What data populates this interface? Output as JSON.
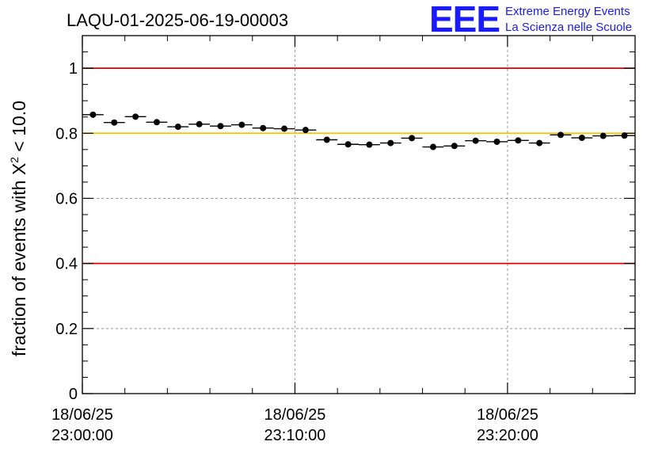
{
  "header": {
    "run_title": "LAQU-01-2025-06-19-00003",
    "logo": {
      "letters": "EEE",
      "line1": "Extreme Energy Events",
      "line2": "La Scienza nelle Scuole",
      "color": "#1a1aff"
    }
  },
  "chart_data": {
    "type": "scatter",
    "title": "LAQU-01-2025-06-19-00003",
    "xlabel": "",
    "ylabel_prefix": "fraction of events with ",
    "ylabel_symbol": "X",
    "ylabel_exponent": "2",
    "ylabel_suffix": " < 10.0",
    "x_unit": "minutes after 18/06/25 23:00:00",
    "xlim": [
      0,
      26
    ],
    "ylim": [
      0,
      1.1
    ],
    "yticks": [
      "0",
      "0.2",
      "0.4",
      "0.6",
      "0.8",
      "1"
    ],
    "xticks": [
      {
        "date": "18/06/25",
        "time": "23:00:00"
      },
      {
        "date": "18/06/25",
        "time": "23:10:00"
      },
      {
        "date": "18/06/25",
        "time": "23:20:00"
      }
    ],
    "grid": true,
    "reference_lines": [
      {
        "y": 1.0,
        "color": "#e00000"
      },
      {
        "y": 0.8,
        "color": "#f5c400"
      },
      {
        "y": 0.4,
        "color": "#e00000"
      }
    ],
    "series": [
      {
        "color": "#000000",
        "bin_width": 1,
        "x": [
          0.5,
          1.5,
          2.5,
          3.5,
          4.5,
          5.5,
          6.5,
          7.5,
          8.5,
          9.5,
          10.5,
          11.5,
          12.5,
          13.5,
          14.5,
          15.5,
          16.5,
          17.5,
          18.5,
          19.5,
          20.5,
          21.5,
          22.5,
          23.5,
          24.5,
          25.5
        ],
        "y": [
          0.857,
          0.833,
          0.851,
          0.834,
          0.82,
          0.828,
          0.822,
          0.826,
          0.816,
          0.814,
          0.81,
          0.78,
          0.766,
          0.765,
          0.77,
          0.785,
          0.758,
          0.761,
          0.777,
          0.774,
          0.778,
          0.77,
          0.795,
          0.786,
          0.792,
          0.793
        ]
      }
    ]
  }
}
